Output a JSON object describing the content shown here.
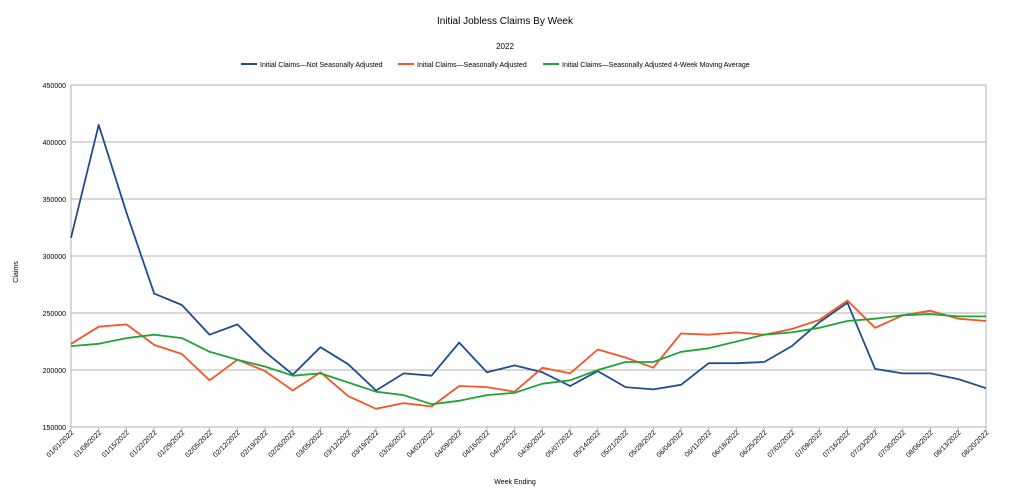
{
  "chart_data": {
    "type": "line",
    "title": "Initial Jobless Claims By Week",
    "subtitle": "2022",
    "xlabel": "Week Ending",
    "ylabel": "Claims",
    "ylim": [
      150000,
      450000
    ],
    "yticks": [
      150000,
      200000,
      250000,
      300000,
      350000,
      400000,
      450000
    ],
    "grid": true,
    "legend_position": "top",
    "categories": [
      "01/01/2022",
      "01/08/2022",
      "01/15/2022",
      "01/22/2022",
      "01/29/2022",
      "02/05/2022",
      "02/12/2022",
      "02/19/2022",
      "02/26/2022",
      "03/05/2022",
      "03/12/2022",
      "03/19/2022",
      "03/26/2022",
      "04/02/2022",
      "04/09/2022",
      "04/16/2022",
      "04/23/2022",
      "04/30/2022",
      "05/07/2022",
      "05/14/2022",
      "05/21/2022",
      "05/28/2022",
      "06/04/2022",
      "06/11/2022",
      "06/18/2022",
      "06/25/2022",
      "07/02/2022",
      "07/09/2022",
      "07/16/2022",
      "07/23/2022",
      "07/30/2022",
      "08/06/2022",
      "08/13/2022",
      "08/20/2022"
    ],
    "series": [
      {
        "name": "Initial Claims—Not Seasonally Adjusted",
        "color": "#1f4e8c",
        "values": [
          316000,
          415000,
          338000,
          267000,
          257000,
          231000,
          240000,
          216000,
          196000,
          220000,
          205000,
          182000,
          197000,
          195000,
          224000,
          198000,
          204000,
          198000,
          186000,
          199000,
          185000,
          183000,
          187000,
          206000,
          206000,
          207000,
          221000,
          242000,
          259000,
          201000,
          197000,
          197000,
          192000,
          184000
        ]
      },
      {
        "name": "Initial Claims—Seasonally Adjusted",
        "color": "#f0572a",
        "values": [
          223000,
          238000,
          240000,
          222000,
          214000,
          191000,
          209000,
          199000,
          182000,
          198000,
          177000,
          166000,
          171000,
          168000,
          186000,
          185000,
          181000,
          202000,
          197000,
          218000,
          211000,
          202000,
          232000,
          231000,
          233000,
          231000,
          236000,
          244000,
          261000,
          237000,
          248000,
          252000,
          245000,
          243000
        ]
      },
      {
        "name": "Initial Claims—Seasonally Adjusted 4-Week Moving Average",
        "color": "#22a33a",
        "values": [
          221000,
          223000,
          228000,
          231000,
          228000,
          216000,
          209000,
          203000,
          195000,
          197000,
          189000,
          181000,
          178000,
          170000,
          173000,
          178000,
          180000,
          188000,
          191000,
          200000,
          207000,
          207000,
          216000,
          219000,
          225000,
          231000,
          233000,
          237000,
          243000,
          245000,
          248000,
          249000,
          247000,
          247000
        ]
      }
    ]
  }
}
